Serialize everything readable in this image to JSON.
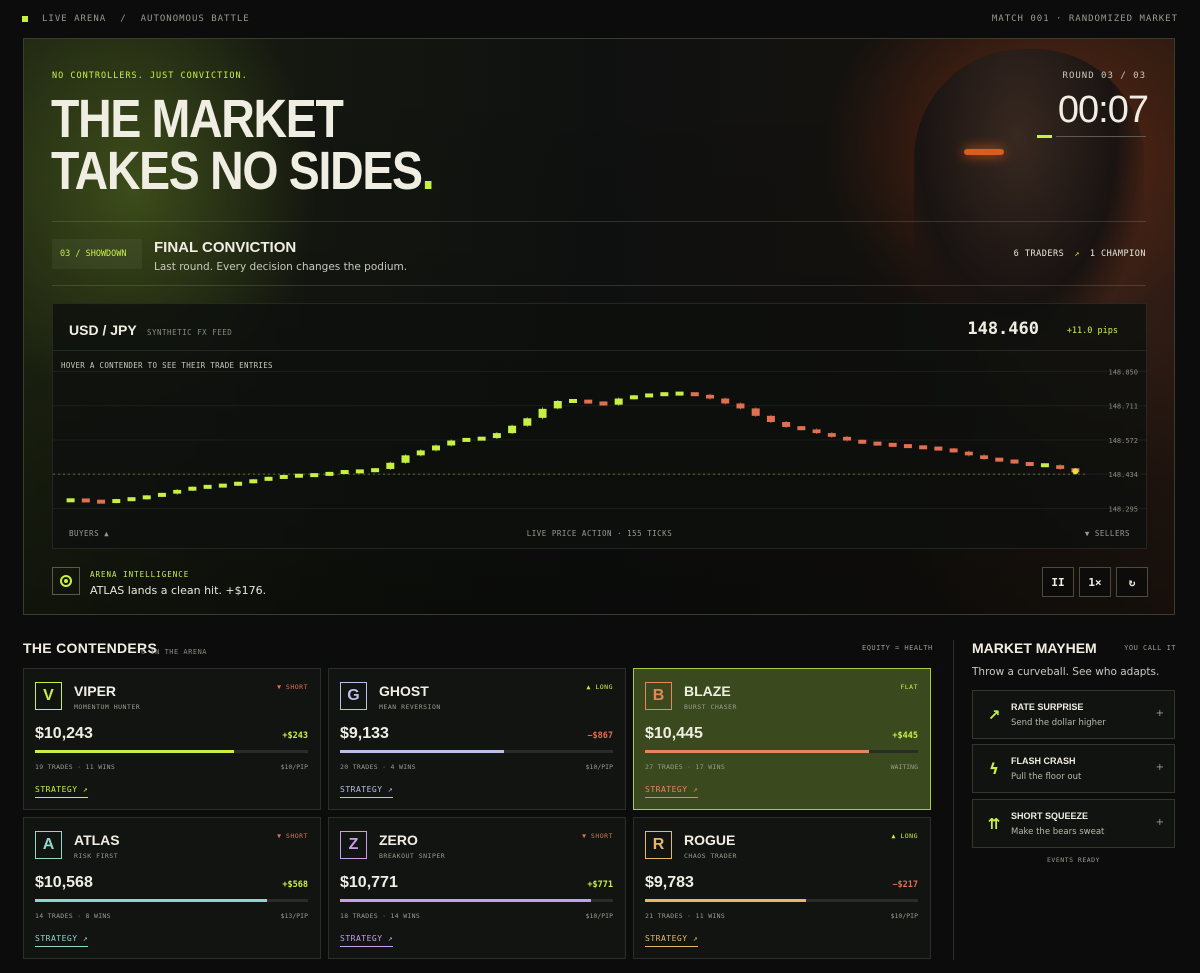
{
  "topbar": {
    "live": "LIVE ARENA",
    "sep": "/",
    "mode": "AUTONOMOUS BATTLE",
    "match": "MATCH 001 · RANDOMIZED MARKET"
  },
  "hero": {
    "tagline": "NO CONTROLLERS. JUST CONVICTION.",
    "headline_line1": "THE MARKET",
    "headline_line2": "TAKES NO SIDES",
    "headline_dot": ".",
    "round": "ROUND 03 / 03",
    "timer": "00:07",
    "timer_progress": 0.15,
    "stage_badge": "03 / SHOWDOWN",
    "stage_title": "FINAL CONVICTION",
    "stage_subtitle": "Last round. Every decision changes the podium.",
    "traders": "6 TRADERS",
    "arrow": "↗",
    "champion": "1 CHAMPION"
  },
  "chart_data": {
    "type": "candlestick",
    "pair": "USD / JPY",
    "feed": "SYNTHETIC FX FEED",
    "price": "148.460",
    "change": "+11.0 pips",
    "hint": "HOVER A CONTENDER TO SEE THEIR TRADE ENTRIES",
    "y_ticks": [
      "148.850",
      "148.711",
      "148.572",
      "148.434",
      "148.295"
    ],
    "ylim": [
      148.22,
      148.9
    ],
    "current_level": 148.434,
    "footer_left": "BUYERS ▲",
    "footer_center": "LIVE PRICE ACTION · 155 TICKS",
    "footer_right": "▼ SELLERS",
    "up_color": "#c7f045",
    "down_color": "#e07050",
    "closes": [
      148.33,
      148.325,
      148.32,
      148.33,
      148.335,
      148.345,
      148.355,
      148.37,
      148.38,
      148.385,
      148.39,
      148.4,
      148.41,
      148.42,
      148.425,
      148.43,
      148.43,
      148.44,
      148.445,
      148.445,
      148.455,
      148.48,
      148.51,
      148.53,
      148.55,
      148.57,
      148.575,
      148.58,
      148.6,
      148.63,
      148.66,
      148.7,
      148.73,
      148.73,
      148.725,
      148.715,
      148.74,
      148.75,
      148.755,
      148.76,
      148.76,
      148.755,
      148.74,
      148.72,
      148.7,
      148.67,
      148.645,
      148.625,
      148.615,
      148.6,
      148.585,
      148.57,
      148.56,
      148.555,
      148.55,
      148.545,
      148.54,
      148.535,
      148.525,
      148.51,
      148.495,
      148.49,
      148.48,
      148.47,
      148.47,
      148.455,
      148.445
    ]
  },
  "intel": {
    "label": "ARENA INTELLIGENCE",
    "text": "ATLAS lands a clean hit. +$176."
  },
  "controls": {
    "pause": "II",
    "speed": "1×",
    "reset": "↻"
  },
  "contenders": {
    "title": "THE CONTENDERS",
    "count": "6 IN THE ARENA",
    "legend": "EQUITY = HEALTH",
    "strategy_label": "STRATEGY ↗",
    "items": [
      {
        "initial": "V",
        "name": "VIPER",
        "style": "MOMENTUM HUNTER",
        "position": "▼ SHORT",
        "equity": "$10,243",
        "pnl": "+$243",
        "health": 0.73,
        "trades": "19 TRADES · 11 WINS",
        "rate": "$10/PIP",
        "color": "#c7f045"
      },
      {
        "initial": "G",
        "name": "GHOST",
        "style": "MEAN REVERSION",
        "position": "▲ LONG",
        "equity": "$9,133",
        "pnl": "−$867",
        "health": 0.6,
        "trades": "20 TRADES · 4 WINS",
        "rate": "$10/PIP",
        "color": "#b9bfe8"
      },
      {
        "initial": "B",
        "name": "BLAZE",
        "style": "BURST CHASER",
        "position": "FLAT",
        "equity": "$10,445",
        "pnl": "+$445",
        "health": 0.82,
        "trades": "27 TRADES · 17 WINS",
        "rate": "WAITING",
        "color": "#e8865a"
      },
      {
        "initial": "A",
        "name": "ATLAS",
        "style": "RISK FIRST",
        "position": "▼ SHORT",
        "equity": "$10,568",
        "pnl": "+$568",
        "health": 0.85,
        "trades": "14 TRADES · 8 WINS",
        "rate": "$13/PIP",
        "color": "#8fd6cc"
      },
      {
        "initial": "Z",
        "name": "ZERO",
        "style": "BREAKOUT SNIPER",
        "position": "▼ SHORT",
        "equity": "$10,771",
        "pnl": "+$771",
        "health": 0.92,
        "trades": "18 TRADES · 14 WINS",
        "rate": "$10/PIP",
        "color": "#c79ef0"
      },
      {
        "initial": "R",
        "name": "ROGUE",
        "style": "CHAOS TRADER",
        "position": "▲ LONG",
        "equity": "$9,783",
        "pnl": "−$217",
        "health": 0.59,
        "trades": "21 TRADES · 11 WINS",
        "rate": "$10/PIP",
        "color": "#e8b86a"
      }
    ]
  },
  "mayhem": {
    "title": "MARKET MAYHEM",
    "call": "YOU CALL IT",
    "subtitle": "Throw a curveball. See who adapts.",
    "ready": "EVENTS READY",
    "events": [
      {
        "icon": "↗",
        "title": "RATE SURPRISE",
        "desc": "Send the dollar higher",
        "plus": "+"
      },
      {
        "icon": "ϟ",
        "title": "FLASH CRASH",
        "desc": "Pull the floor out",
        "plus": "+"
      },
      {
        "icon": "⇈",
        "title": "SHORT SQUEEZE",
        "desc": "Make the bears sweat",
        "plus": "+"
      }
    ]
  }
}
